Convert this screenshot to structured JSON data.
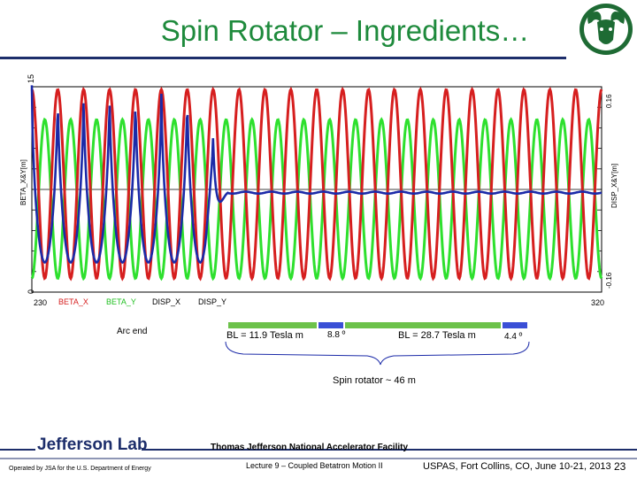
{
  "header": {
    "title": "Spin Rotator – Ingredients…"
  },
  "chart_data": {
    "type": "line",
    "x_range": [
      230,
      320
    ],
    "x_ticks": [
      "230",
      "320"
    ],
    "left_axis": {
      "label": "BETA_X&Y[m]",
      "range": [
        0,
        15
      ],
      "tick_top": "15",
      "tick_bottom": "0"
    },
    "right_axis": {
      "label": "DISP_X&Y[m]",
      "range": [
        -0.16,
        0.16
      ],
      "tick_top": "0.16",
      "tick_bottom": "-0.16"
    },
    "legend": [
      {
        "name": "BETA_X",
        "color": "#d61f1f"
      },
      {
        "name": "BETA_Y",
        "color": "#1fbf1f"
      },
      {
        "name": "DISP_X",
        "color": "#1b2aa8"
      },
      {
        "name": "DISP_Y",
        "color": "#1b2aa8"
      }
    ],
    "series": [
      {
        "name": "BETA_X",
        "description": "periodic oscillation across full range, peaks near 15 m",
        "periods": 22
      },
      {
        "name": "BETA_Y",
        "description": "periodic oscillation across full range, peaks near 12 m",
        "periods": 22
      },
      {
        "name": "DISP_X",
        "description": "large periodic oscillation in arc region (x<256), then flat near -0.005 m"
      }
    ],
    "colors": {
      "beta_x": "#d61f1f",
      "beta_y": "#2ee02e",
      "disp_x": "#1b2aa8",
      "magnet_green": "#6cc24a",
      "magnet_blue": "#3a4fd6"
    }
  },
  "annotations": {
    "arc_end": "Arc end",
    "bl1": "BL = 11.9 Tesla m",
    "angle1": "8.8 º",
    "bl2": "BL = 28.7 Tesla m",
    "angle2": "4.4 º",
    "spin_rotator": "Spin rotator ~ 46 m"
  },
  "footer": {
    "lab": "Jefferson Lab",
    "operated_by": "Operated by JSA for the U.S. Department of Energy",
    "facility": "Thomas Jefferson National Accelerator Facility",
    "lecture": "Lecture 9 – Coupled Betatron Motion II",
    "venue": "USPAS, Fort Collins, CO, June 10-21, 2013",
    "page": "23"
  }
}
